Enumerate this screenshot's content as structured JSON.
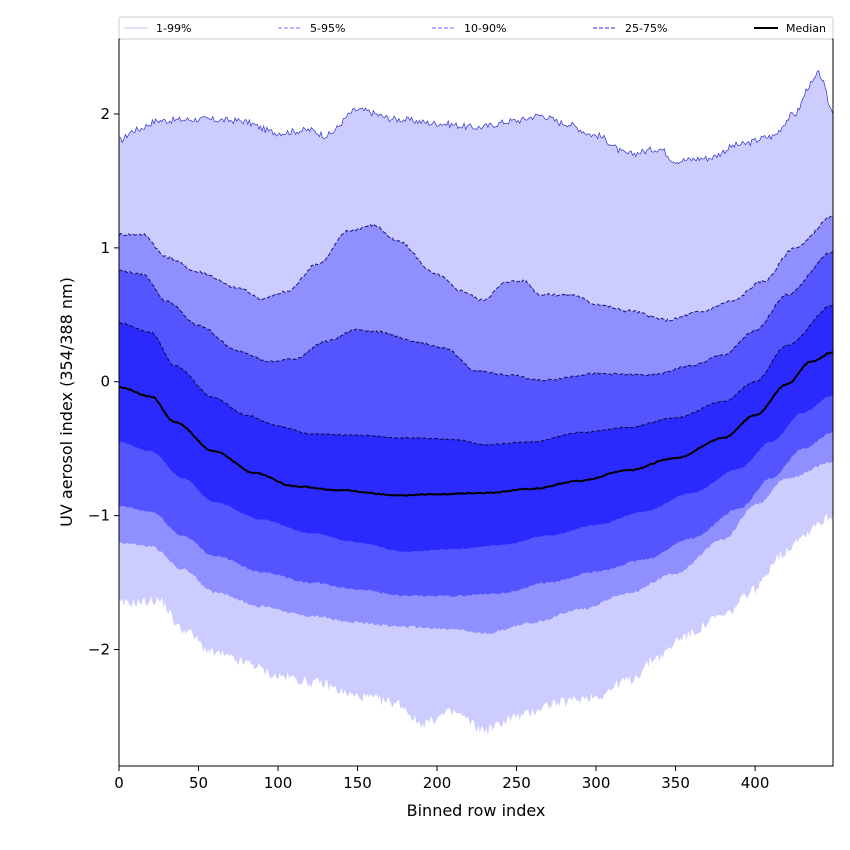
{
  "chart_data": {
    "type": "area",
    "title": "",
    "xlabel": "Binned row index",
    "ylabel": "UV aerosol index (354/388 nm)",
    "xlim": [
      0,
      449
    ],
    "ylim": [
      -2.87,
      2.56
    ],
    "xticks": [
      0,
      50,
      100,
      150,
      200,
      250,
      300,
      350,
      400
    ],
    "yticks": [
      -2,
      -1,
      0,
      1,
      2
    ],
    "ytick_labels": [
      "−2",
      "−1",
      "0",
      "1",
      "2"
    ],
    "grid": false,
    "legend_position": "top",
    "legend": [
      {
        "label": "1-99%",
        "color": "#ccccff",
        "style": "solid"
      },
      {
        "label": "5-95%",
        "color": "#8f8fff",
        "style": "dashed"
      },
      {
        "label": "10-90%",
        "color": "#5555ff",
        "style": "dashed"
      },
      {
        "label": "25-75%",
        "color": "#2a2aff",
        "style": "dashed"
      },
      {
        "label": "Median",
        "color": "#000000",
        "style": "solid"
      }
    ],
    "bands": [
      {
        "name": "1-99%",
        "color": "#ccccff",
        "upper": {
          "x": [
            0,
            10,
            25,
            50,
            75,
            100,
            120,
            130,
            150,
            175,
            200,
            225,
            250,
            265,
            280,
            300,
            320,
            340,
            350,
            370,
            390,
            410,
            425,
            435,
            440,
            449
          ],
          "y": [
            1.8,
            1.88,
            1.95,
            1.96,
            1.95,
            1.86,
            1.88,
            1.84,
            2.03,
            1.96,
            1.93,
            1.9,
            1.95,
            1.99,
            1.93,
            1.84,
            1.7,
            1.74,
            1.65,
            1.67,
            1.77,
            1.83,
            2.0,
            2.22,
            2.3,
            2.02
          ]
        },
        "lower": {
          "x": [
            0,
            10,
            25,
            40,
            60,
            80,
            100,
            125,
            150,
            175,
            190,
            210,
            230,
            250,
            275,
            300,
            320,
            340,
            355,
            380,
            400,
            415,
            430,
            440,
            449
          ],
          "y": [
            -1.66,
            -1.65,
            -1.63,
            -1.85,
            -2.03,
            -2.1,
            -2.2,
            -2.25,
            -2.35,
            -2.4,
            -2.55,
            -2.47,
            -2.6,
            -2.5,
            -2.4,
            -2.35,
            -2.23,
            -2.05,
            -1.9,
            -1.75,
            -1.55,
            -1.3,
            -1.15,
            -1.05,
            -1.0
          ]
        },
        "upper_outline_color": "#3333cc"
      },
      {
        "name": "5-95%",
        "color": "#8f8fff",
        "upper": {
          "x": [
            0,
            15,
            30,
            50,
            75,
            90,
            105,
            125,
            145,
            160,
            175,
            200,
            215,
            228,
            245,
            255,
            265,
            285,
            300,
            320,
            345,
            365,
            385,
            405,
            425,
            449
          ],
          "y": [
            1.1,
            1.1,
            0.93,
            0.82,
            0.7,
            0.62,
            0.67,
            0.88,
            1.13,
            1.17,
            1.05,
            0.8,
            0.68,
            0.61,
            0.75,
            0.75,
            0.65,
            0.65,
            0.58,
            0.53,
            0.46,
            0.52,
            0.6,
            0.75,
            1.0,
            1.23
          ]
        },
        "lower": {
          "x": [
            0,
            20,
            40,
            60,
            90,
            120,
            150,
            180,
            210,
            230,
            260,
            290,
            320,
            350,
            380,
            400,
            420,
            449
          ],
          "y": [
            -1.2,
            -1.23,
            -1.4,
            -1.57,
            -1.68,
            -1.75,
            -1.8,
            -1.83,
            -1.85,
            -1.88,
            -1.8,
            -1.7,
            -1.58,
            -1.43,
            -1.18,
            -0.92,
            -0.72,
            -0.6
          ]
        },
        "upper_outline_color": "#1a1a80"
      },
      {
        "name": "10-90%",
        "color": "#5555ff",
        "upper": {
          "x": [
            0,
            15,
            30,
            50,
            75,
            95,
            110,
            130,
            150,
            165,
            185,
            205,
            225,
            245,
            265,
            300,
            335,
            360,
            380,
            400,
            420,
            449
          ],
          "y": [
            0.83,
            0.8,
            0.6,
            0.42,
            0.23,
            0.15,
            0.17,
            0.3,
            0.39,
            0.37,
            0.3,
            0.25,
            0.08,
            0.05,
            0.01,
            0.06,
            0.05,
            0.12,
            0.2,
            0.38,
            0.65,
            0.97
          ]
        },
        "lower": {
          "x": [
            0,
            20,
            40,
            60,
            90,
            120,
            150,
            180,
            210,
            240,
            270,
            300,
            330,
            360,
            390,
            410,
            430,
            449
          ],
          "y": [
            -0.93,
            -0.97,
            -1.15,
            -1.3,
            -1.42,
            -1.5,
            -1.55,
            -1.6,
            -1.6,
            -1.58,
            -1.5,
            -1.42,
            -1.33,
            -1.17,
            -0.95,
            -0.72,
            -0.5,
            -0.38
          ]
        },
        "upper_outline_color": "#10105a"
      },
      {
        "name": "25-75%",
        "color": "#2a2aff",
        "upper": {
          "x": [
            0,
            20,
            35,
            60,
            80,
            100,
            120,
            150,
            180,
            210,
            230,
            260,
            290,
            320,
            350,
            380,
            400,
            420,
            449
          ],
          "y": [
            0.44,
            0.37,
            0.12,
            -0.12,
            -0.25,
            -0.33,
            -0.39,
            -0.4,
            -0.42,
            -0.43,
            -0.47,
            -0.45,
            -0.38,
            -0.34,
            -0.27,
            -0.15,
            0.0,
            0.27,
            0.57
          ]
        },
        "lower": {
          "x": [
            0,
            20,
            40,
            60,
            90,
            120,
            150,
            180,
            210,
            240,
            270,
            300,
            330,
            360,
            390,
            410,
            430,
            449
          ],
          "y": [
            -0.45,
            -0.52,
            -0.72,
            -0.9,
            -1.03,
            -1.13,
            -1.2,
            -1.27,
            -1.25,
            -1.22,
            -1.15,
            -1.07,
            -0.97,
            -0.83,
            -0.65,
            -0.45,
            -0.23,
            -0.1
          ]
        },
        "upper_outline_color": "#0a0a40"
      }
    ],
    "median": {
      "name": "Median",
      "color": "#000000",
      "x": [
        0,
        20,
        35,
        60,
        85,
        110,
        140,
        175,
        200,
        230,
        260,
        290,
        320,
        350,
        380,
        400,
        420,
        435,
        449
      ],
      "y": [
        -0.04,
        -0.11,
        -0.3,
        -0.52,
        -0.68,
        -0.78,
        -0.81,
        -0.85,
        -0.84,
        -0.83,
        -0.8,
        -0.74,
        -0.66,
        -0.57,
        -0.42,
        -0.25,
        -0.02,
        0.15,
        0.22
      ]
    }
  }
}
